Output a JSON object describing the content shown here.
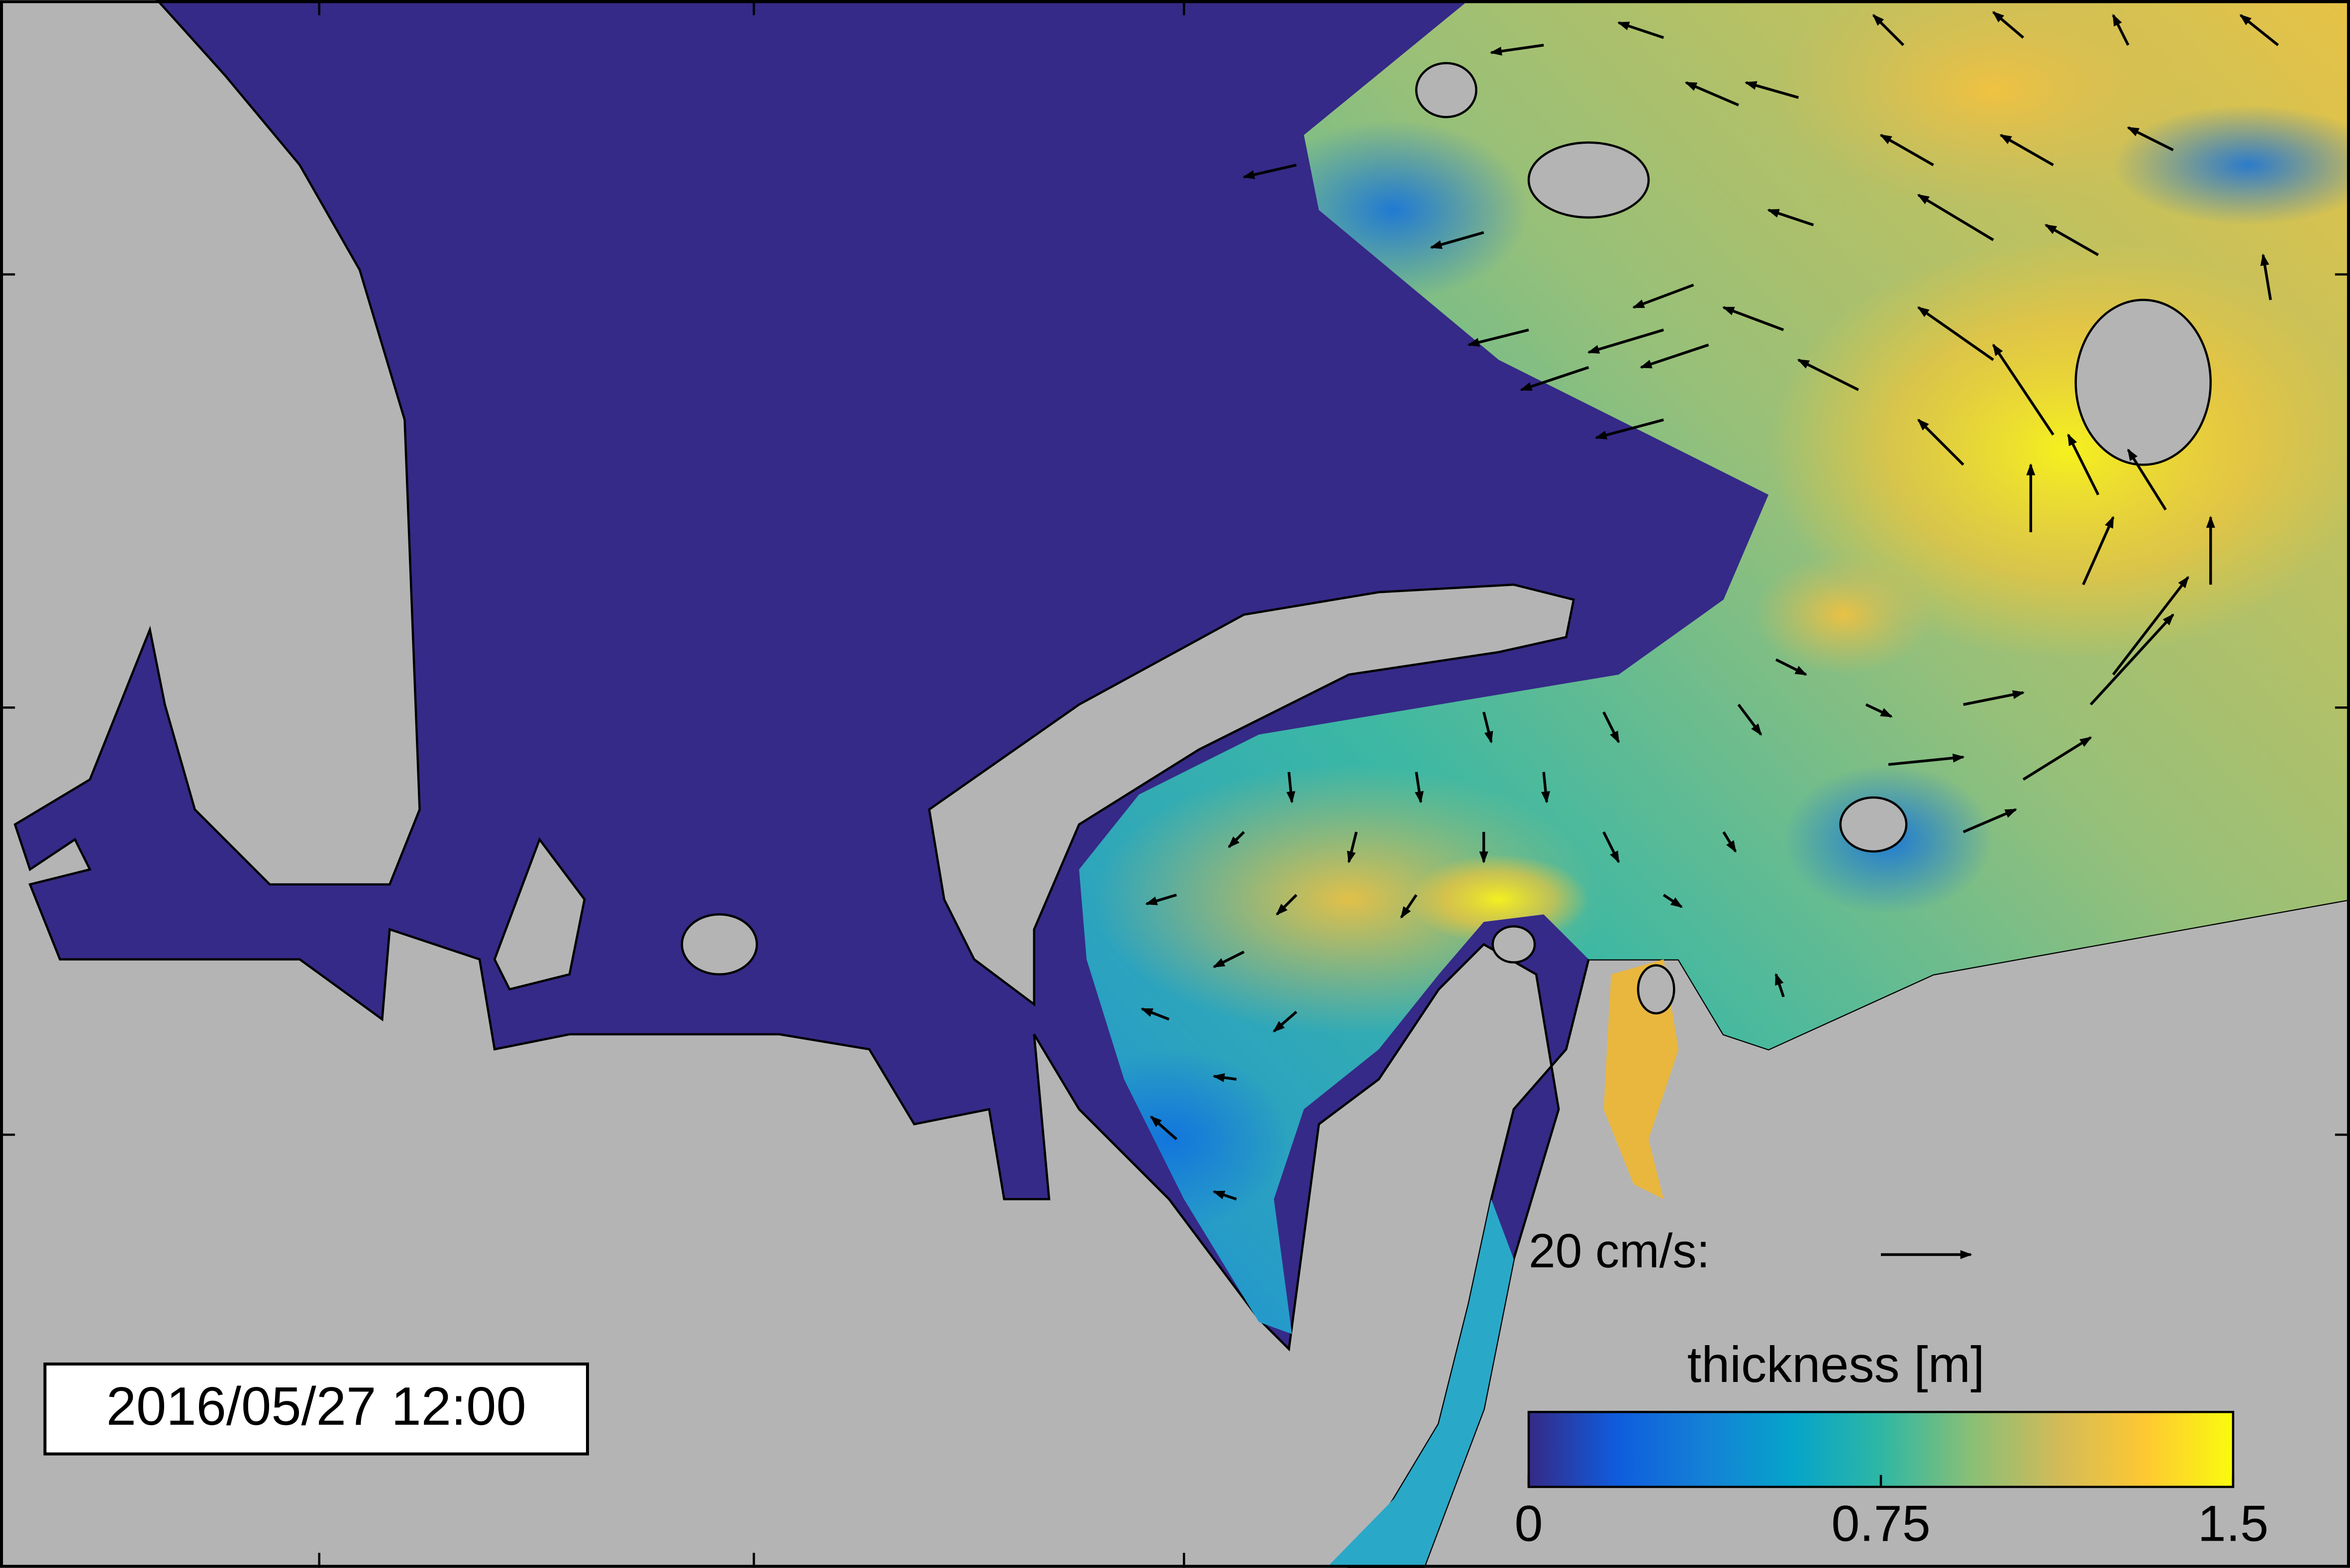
{
  "timestamp": "2016/05/27 12:00",
  "velocity_legend": {
    "label": "20 cm/s:"
  },
  "colorbar": {
    "title": "thickness [m]",
    "lim": [
      0,
      1.5
    ],
    "ticks": [
      0,
      0.75,
      1.5
    ],
    "colors": [
      "#352a87",
      "#0f5cdd",
      "#1481d6",
      "#06a4ca",
      "#2eb7a4",
      "#87bf77",
      "#d1bb59",
      "#fec832",
      "#f9fb0e"
    ]
  }
}
